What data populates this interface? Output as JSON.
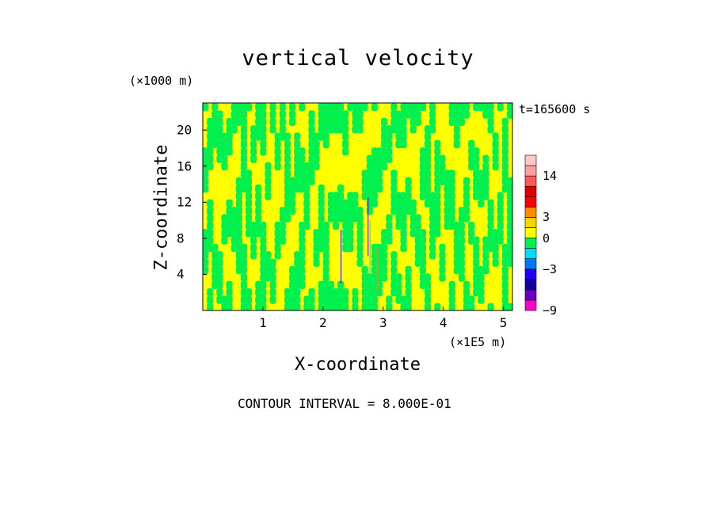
{
  "chart_data": {
    "type": "heatmap",
    "title": "vertical velocity",
    "xlabel": "X-coordinate",
    "ylabel": "Z-coordinate",
    "x_unit": "(×1E5 m)",
    "z_unit": "(×1000 m)",
    "time_label": "t=165600 s",
    "contour_note": "CONTOUR INTERVAL = 8.000E-01",
    "xlim": [
      0,
      5.15
    ],
    "ylim": [
      0,
      23
    ],
    "x_ticks": [
      "1",
      "2",
      "3",
      "4",
      "5"
    ],
    "y_ticks": [
      "4",
      "8",
      "12",
      "16",
      "20"
    ],
    "colorbar": {
      "labels": [
        "14",
        "3",
        "0",
        "−3",
        "−9"
      ],
      "label_values": [
        14,
        3,
        0,
        -3,
        -9
      ],
      "segments": [
        {
          "from": -9,
          "to": -7.5,
          "color": "#ff00c8"
        },
        {
          "from": -7.5,
          "to": -6,
          "color": "#6a00c8"
        },
        {
          "from": -6,
          "to": -4.5,
          "color": "#1400a0"
        },
        {
          "from": -4.5,
          "to": -3,
          "color": "#1e00ff"
        },
        {
          "from": -3,
          "to": -1.5,
          "color": "#0078ff"
        },
        {
          "from": -1.5,
          "to": -0.75,
          "color": "#00dcff"
        },
        {
          "from": -0.75,
          "to": 0,
          "color": "#00f050"
        },
        {
          "from": 0,
          "to": 1.5,
          "color": "#ffff00"
        },
        {
          "from": 1.5,
          "to": 3,
          "color": "#ffd200"
        },
        {
          "from": 3,
          "to": 4.5,
          "color": "#ff8c00"
        },
        {
          "from": 4.5,
          "to": 6,
          "color": "#ff0000"
        },
        {
          "from": 6,
          "to": 8,
          "color": "#e00000"
        },
        {
          "from": 8,
          "to": 14,
          "color": "#ff5a5a"
        },
        {
          "from": 14,
          "to": 17,
          "color": "#ffa0a0"
        },
        {
          "from": 17,
          "to": 19,
          "color": "#ffc8c8"
        }
      ]
    },
    "field_colors": {
      "positive": "#ffff00",
      "negative": "#00f050"
    }
  }
}
